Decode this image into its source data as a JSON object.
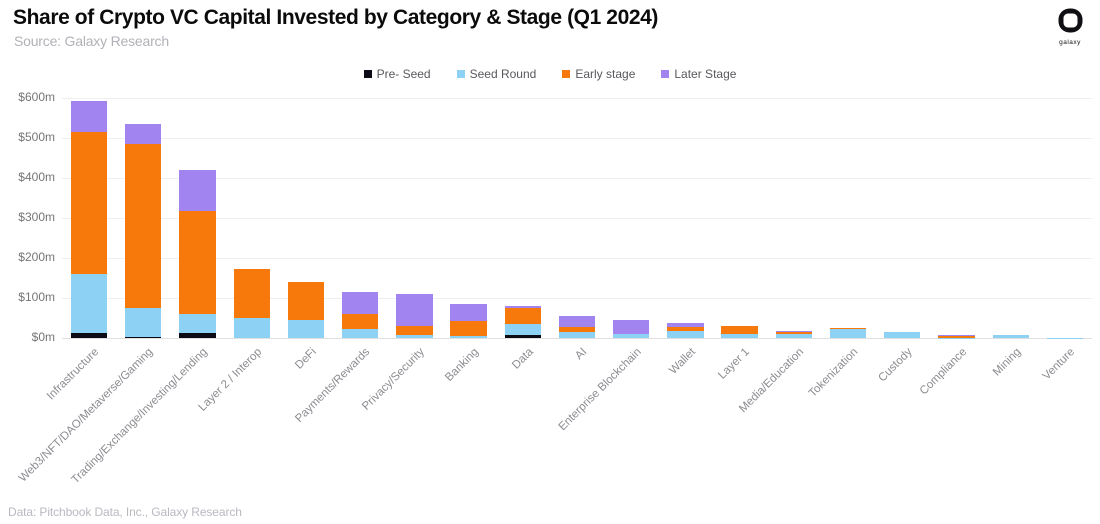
{
  "header": {
    "title": "Share of Crypto VC Capital Invested by Category & Stage (Q1 2024)",
    "subtitle": "Source: Galaxy Research",
    "logo_text": "galaxy"
  },
  "footer": {
    "credit": "Data: Pitchbook Data, Inc., Galaxy Research"
  },
  "colors": {
    "pre_seed": "#0b0b15",
    "seed_round": "#8dd2f5",
    "early_stage": "#f8790b",
    "later_stage": "#a284f0",
    "grid": "#efefef",
    "axis_line": "#e0e0e0"
  },
  "chart_data": {
    "type": "bar",
    "stacked": true,
    "title": "Share of Crypto VC Capital Invested by Category & Stage (Q1 2024)",
    "xlabel": "",
    "ylabel": "",
    "ylim": [
      0,
      600
    ],
    "yticks": [
      0,
      100,
      200,
      300,
      400,
      500,
      600
    ],
    "ytick_labels": [
      "$0m",
      "$100m",
      "$200m",
      "$300m",
      "$400m",
      "$500m",
      "$600m"
    ],
    "grid": true,
    "legend_position": "top-center",
    "units": "USD millions",
    "categories": [
      "Infrastructure",
      "Web3/NFT/DAO/Metaverse/Gaming",
      "Trading/Exchange/Investing/Lending",
      "Layer 2 / Interop",
      "DeFi",
      "Payments/Rewards",
      "Privacy/Security",
      "Banking",
      "Data",
      "AI",
      "Enterprise Blockchain",
      "Wallet",
      "Layer 1",
      "Media/Education",
      "Tokenization",
      "Custody",
      "Compliance",
      "Mining",
      "Venture"
    ],
    "series": [
      {
        "name": "Pre- Seed",
        "color_key": "pre_seed",
        "values": [
          12,
          2,
          13,
          0,
          0,
          0,
          0,
          0,
          7,
          0,
          0,
          0,
          0,
          0,
          0,
          0,
          0,
          0,
          0
        ]
      },
      {
        "name": "Seed Round",
        "color_key": "seed_round",
        "values": [
          148,
          72,
          47,
          50,
          46,
          23,
          8,
          5,
          29,
          14,
          9,
          18,
          11,
          11,
          22,
          14,
          1,
          7,
          1
        ]
      },
      {
        "name": "Early stage",
        "color_key": "early_stage",
        "values": [
          355,
          412,
          257,
          122,
          94,
          38,
          22,
          37,
          40,
          13,
          0,
          9,
          18,
          4,
          2,
          0,
          5,
          0,
          0
        ]
      },
      {
        "name": "Later Stage",
        "color_key": "later_stage",
        "values": [
          78,
          48,
          103,
          0,
          0,
          55,
          79,
          44,
          4,
          28,
          35,
          10,
          0,
          3,
          0,
          0,
          2,
          0,
          0
        ]
      }
    ]
  }
}
